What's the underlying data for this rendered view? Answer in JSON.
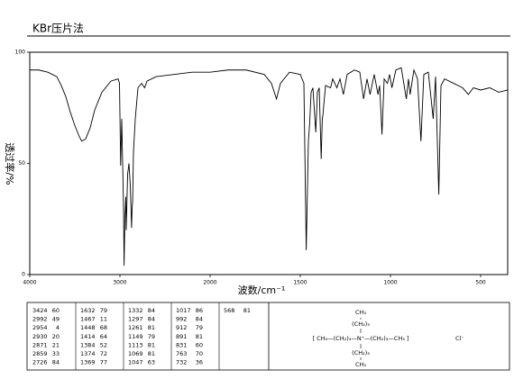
{
  "chart_data": {
    "type": "line",
    "title": "KBr压片法",
    "xlabel": "波数/cm⁻¹",
    "ylabel": "透过率/%",
    "x": [
      4000,
      3900,
      3800,
      3700,
      3650,
      3600,
      3550,
      3500,
      3450,
      3424,
      3380,
      3330,
      3280,
      3200,
      3100,
      3020,
      3005,
      2992,
      2980,
      2960,
      2954,
      2945,
      2935,
      2930,
      2915,
      2900,
      2885,
      2871,
      2865,
      2859,
      2850,
      2830,
      2800,
      2760,
      2726,
      2700,
      2600,
      2400,
      2200,
      2000,
      1900,
      1800,
      1700,
      1660,
      1632,
      1610,
      1560,
      1500,
      1480,
      1467,
      1455,
      1448,
      1440,
      1430,
      1414,
      1405,
      1395,
      1384,
      1378,
      1374,
      1369,
      1360,
      1332,
      1320,
      1297,
      1280,
      1261,
      1240,
      1200,
      1170,
      1149,
      1130,
      1113,
      1090,
      1069,
      1060,
      1047,
      1035,
      1017,
      1005,
      992,
      970,
      940,
      912,
      900,
      891,
      870,
      850,
      831,
      815,
      790,
      763,
      750,
      732,
      720,
      700,
      650,
      600,
      568,
      540,
      500,
      450,
      400,
      350
    ],
    "series": [
      {
        "color": "#000000",
        "values": [
          92,
          92,
          91,
          89,
          85,
          80,
          73,
          67,
          62,
          60,
          61,
          66,
          74,
          82,
          87,
          88,
          86,
          49,
          70,
          30,
          4,
          25,
          35,
          20,
          45,
          50,
          40,
          21,
          30,
          33,
          55,
          70,
          84,
          86,
          84,
          87,
          89,
          90,
          91,
          91,
          92,
          92,
          90,
          86,
          79,
          86,
          91,
          90,
          86,
          11,
          60,
          68,
          82,
          84,
          64,
          82,
          84,
          52,
          70,
          72,
          77,
          85,
          84,
          88,
          84,
          88,
          81,
          90,
          92,
          91,
          79,
          88,
          81,
          90,
          81,
          85,
          63,
          88,
          86,
          90,
          84,
          92,
          93,
          79,
          88,
          81,
          92,
          88,
          60,
          90,
          91,
          70,
          89,
          36,
          85,
          88,
          86,
          84,
          81,
          84,
          83,
          84,
          82,
          83
        ]
      }
    ],
    "xlim": [
      4000,
      350
    ],
    "x_scale_break": 2000,
    "ylim": [
      0,
      100
    ],
    "xticks": [
      4000,
      3000,
      2000,
      1500,
      1000,
      500
    ],
    "yticks": [
      0,
      50,
      100
    ]
  },
  "peak_table": [
    [
      3424,
      60
    ],
    [
      2992,
      49
    ],
    [
      2954,
      4
    ],
    [
      2930,
      20
    ],
    [
      2871,
      21
    ],
    [
      2859,
      33
    ],
    [
      2726,
      84
    ],
    [
      1632,
      79
    ],
    [
      1467,
      11
    ],
    [
      1448,
      68
    ],
    [
      1414,
      64
    ],
    [
      1384,
      52
    ],
    [
      1374,
      72
    ],
    [
      1369,
      77
    ],
    [
      1332,
      84
    ],
    [
      1297,
      84
    ],
    [
      1261,
      81
    ],
    [
      1149,
      79
    ],
    [
      1113,
      81
    ],
    [
      1069,
      81
    ],
    [
      1047,
      63
    ],
    [
      1017,
      86
    ],
    [
      992,
      84
    ],
    [
      912,
      79
    ],
    [
      891,
      81
    ],
    [
      831,
      60
    ],
    [
      763,
      70
    ],
    [
      732,
      36
    ],
    [
      568,
      81
    ]
  ],
  "structure": {
    "top": [
      "CH₃",
      "(CH₂)₃"
    ],
    "middle": "[ CH₃—(CH₂)₃—N⁺—(CH₂)₃—CH₃ ]",
    "bottom": [
      "(CH₂)₃",
      "CH₃"
    ],
    "counter_ion": "Cl⁻"
  }
}
